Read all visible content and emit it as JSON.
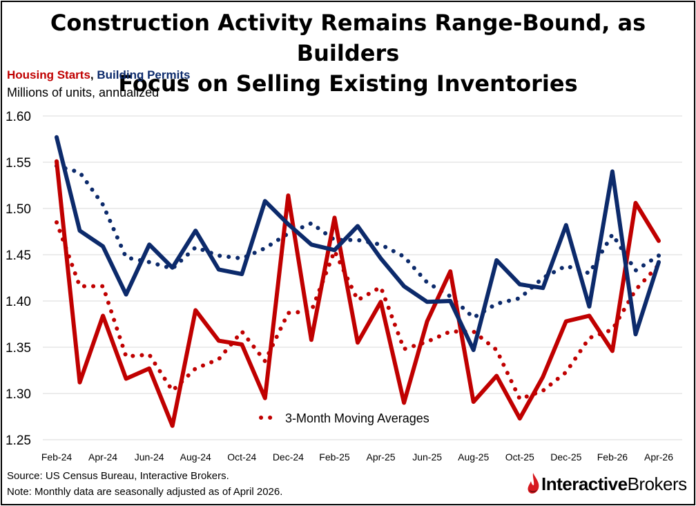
{
  "title_line1": "Construction Activity Remains Range-Bound, as Builders",
  "title_line2": "Focus on Selling Existing Inventories",
  "legend": {
    "starts_label": "Housing Starts",
    "separator": ",",
    "permits_label": "Building Permits"
  },
  "units_label": "Millions of units, annualized",
  "ma_label": "3-Month Moving Averages",
  "footer": {
    "source": "Source: US Census Bureau, Interactive Brokers.",
    "note": "Note: Monthly data are seasonally adjusted as of April 2026."
  },
  "logo": {
    "part1": "Interactive",
    "part2": "Brokers",
    "icon": "flame-icon"
  },
  "colors": {
    "starts": "#c00000",
    "permits": "#0c2a6b",
    "grid": "#d9d9d9"
  },
  "chart_data": {
    "type": "line",
    "x": [
      "Feb-24",
      "Mar-24",
      "Apr-24",
      "May-24",
      "Jun-24",
      "Jul-24",
      "Aug-24",
      "Sep-24",
      "Oct-24",
      "Nov-24",
      "Dec-24",
      "Jan-25",
      "Feb-25",
      "Mar-25",
      "Apr-25",
      "May-25",
      "Jun-25",
      "Jul-25",
      "Aug-25",
      "Sep-25",
      "Oct-25",
      "Nov-25",
      "Dec-25",
      "Jan-26",
      "Feb-26",
      "Mar-26",
      "Apr-26"
    ],
    "tick_labels": [
      "Feb-24",
      "Apr-24",
      "Jun-24",
      "Aug-24",
      "Oct-24",
      "Dec-24",
      "Feb-25",
      "Apr-25",
      "Jun-25",
      "Aug-25",
      "Oct-25",
      "Dec-25",
      "Feb-26",
      "Apr-26"
    ],
    "ylim": [
      1.25,
      1.6
    ],
    "yticks": [
      "1.25",
      "1.30",
      "1.35",
      "1.40",
      "1.45",
      "1.50",
      "1.55",
      "1.60"
    ],
    "grid": true,
    "series": [
      {
        "name": "Housing Starts",
        "style": "solid",
        "color": "#c00000",
        "values": [
          1.551,
          1.312,
          1.384,
          1.316,
          1.327,
          1.265,
          1.39,
          1.357,
          1.353,
          1.295,
          1.514,
          1.358,
          1.49,
          1.355,
          1.399,
          1.29,
          1.378,
          1.432,
          1.291,
          1.319,
          1.273,
          1.318,
          1.378,
          1.384,
          1.346,
          1.506,
          1.465
        ]
      },
      {
        "name": "Building Permits",
        "style": "solid",
        "color": "#0c2a6b",
        "values": [
          1.577,
          1.476,
          1.459,
          1.407,
          1.461,
          1.436,
          1.476,
          1.434,
          1.429,
          1.508,
          1.483,
          1.461,
          1.455,
          1.481,
          1.446,
          1.416,
          1.399,
          1.4,
          1.347,
          1.444,
          1.418,
          1.414,
          1.482,
          1.394,
          1.54,
          1.364,
          1.442
        ]
      },
      {
        "name": "",
        "style": "dotted",
        "color": "#c00000",
        "values": [
          1.485,
          1.416,
          1.416,
          1.34,
          1.342,
          1.303,
          1.327,
          1.337,
          1.367,
          1.335,
          1.387,
          1.389,
          1.454,
          1.401,
          1.415,
          1.348,
          1.356,
          1.367,
          1.367,
          1.347,
          1.294,
          1.303,
          1.323,
          1.36,
          1.369,
          1.412,
          1.439
        ]
      },
      {
        "name": "",
        "style": "dotted",
        "color": "#0c2a6b",
        "values": [
          1.546,
          1.539,
          1.504,
          1.447,
          1.442,
          1.435,
          1.458,
          1.449,
          1.446,
          1.457,
          1.473,
          1.484,
          1.466,
          1.466,
          1.461,
          1.448,
          1.42,
          1.405,
          1.382,
          1.397,
          1.403,
          1.425,
          1.438,
          1.43,
          1.472,
          1.433,
          1.449
        ]
      }
    ]
  }
}
